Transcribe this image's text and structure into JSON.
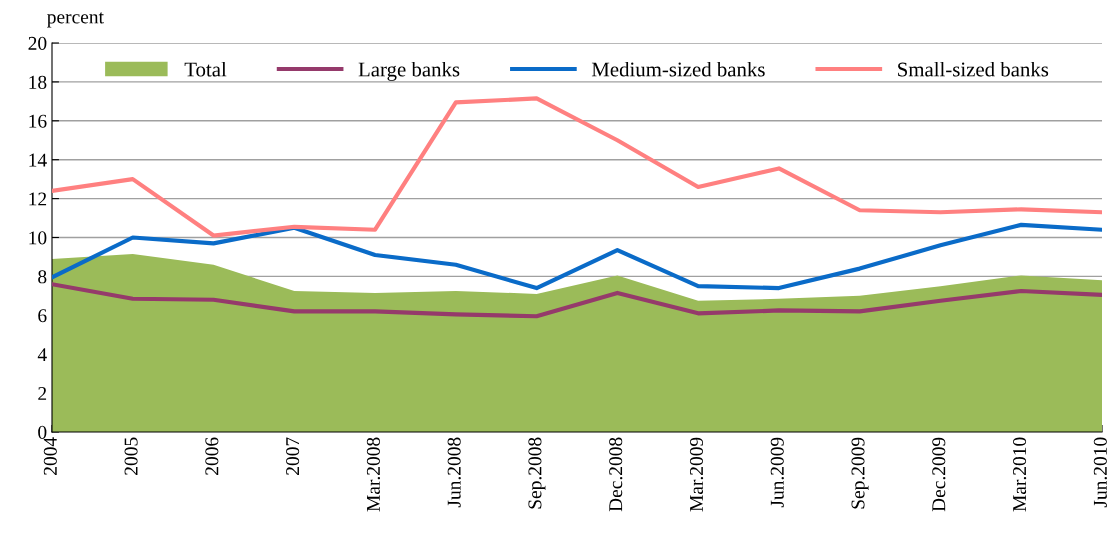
{
  "chart_data": {
    "type": "line",
    "ylabel": "percent",
    "categories": [
      "2004",
      "2005",
      "2006",
      "2007",
      "Mar.2008",
      "Jun.2008",
      "Sep.2008",
      "Dec.2008",
      "Mar.2009",
      "Jun.2009",
      "Sep.2009",
      "Dec.2009",
      "Mar.2010",
      "Jun.2010"
    ],
    "series": [
      {
        "name": "Total",
        "type": "area",
        "color": "#9bbb59",
        "values": [
          8.9,
          9.15,
          8.6,
          7.25,
          7.15,
          7.25,
          7.1,
          8.05,
          6.75,
          6.85,
          7.0,
          7.5,
          8.05,
          7.8
        ]
      },
      {
        "name": "Large banks",
        "color": "#953a6b",
        "values": [
          7.6,
          6.85,
          6.8,
          6.2,
          6.2,
          6.05,
          5.95,
          7.15,
          6.1,
          6.25,
          6.2,
          6.75,
          7.25,
          7.05
        ]
      },
      {
        "name": "Medium-sized banks",
        "color": "#0a6bc8",
        "values": [
          7.95,
          10.0,
          9.7,
          10.5,
          9.1,
          8.6,
          7.4,
          9.35,
          7.5,
          7.4,
          8.4,
          9.6,
          10.65,
          10.4
        ]
      },
      {
        "name": "Small-sized banks",
        "color": "#ff8080",
        "values": [
          12.4,
          13.0,
          10.1,
          10.55,
          10.4,
          16.95,
          17.15,
          15.0,
          12.6,
          13.55,
          11.4,
          11.3,
          11.45,
          11.3
        ]
      }
    ],
    "ylim": [
      0,
      20
    ],
    "yticks": [
      0,
      2,
      4,
      6,
      8,
      10,
      12,
      14,
      16,
      18,
      20
    ],
    "grid": "y",
    "legend": "top",
    "line_style": "solid",
    "marker": "none"
  }
}
